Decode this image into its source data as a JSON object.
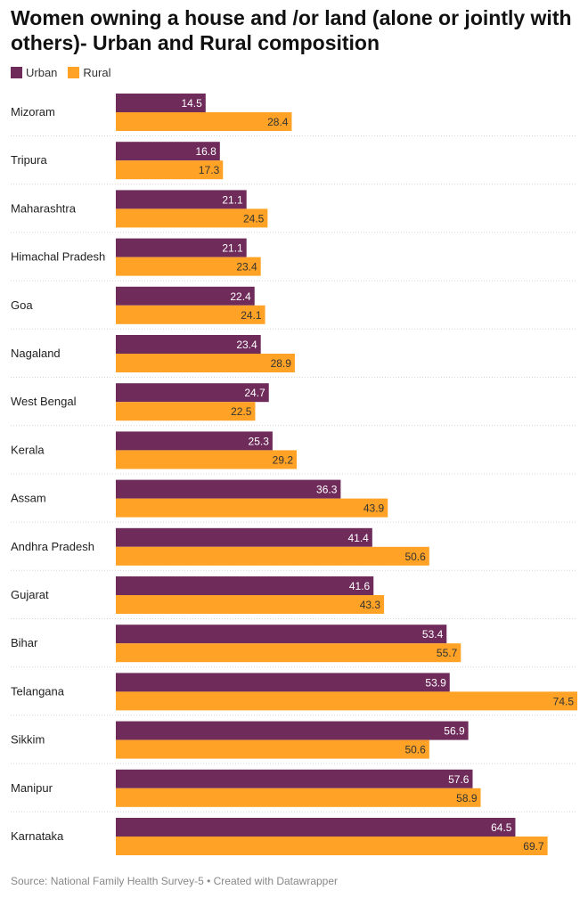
{
  "header": {
    "title": "Women owning a house and /or land (alone or jointly with others)- Urban and Rural composition"
  },
  "legend": {
    "items": [
      {
        "label": "Urban",
        "color": "#6f2c5b"
      },
      {
        "label": "Rural",
        "color": "#ffa225"
      }
    ]
  },
  "footer": {
    "source": "Source: National Family Health Survey-5 • Created with Datawrapper"
  },
  "chart_data": {
    "type": "bar",
    "orientation": "horizontal",
    "categories": [
      "Mizoram",
      "Tripura",
      "Maharashtra",
      "Himachal Pradesh",
      "Goa",
      "Nagaland",
      "West Bengal",
      "Kerala",
      "Assam",
      "Andhra Pradesh",
      "Gujarat",
      "Bihar",
      "Telangana",
      "Sikkim",
      "Manipur",
      "Karnataka"
    ],
    "series": [
      {
        "name": "Urban",
        "color": "#6f2c5b",
        "values": [
          14.5,
          16.8,
          21.1,
          21.1,
          22.4,
          23.4,
          24.7,
          25.3,
          36.3,
          41.4,
          41.6,
          53.4,
          53.9,
          56.9,
          57.6,
          64.5
        ]
      },
      {
        "name": "Rural",
        "color": "#ffa225",
        "values": [
          28.4,
          17.3,
          24.5,
          23.4,
          24.1,
          28.9,
          22.5,
          29.2,
          43.9,
          50.6,
          43.3,
          55.7,
          74.5,
          50.6,
          58.9,
          69.7
        ]
      }
    ],
    "xlim": [
      0,
      74.5
    ],
    "grid": false,
    "legend_position": "top-left"
  }
}
